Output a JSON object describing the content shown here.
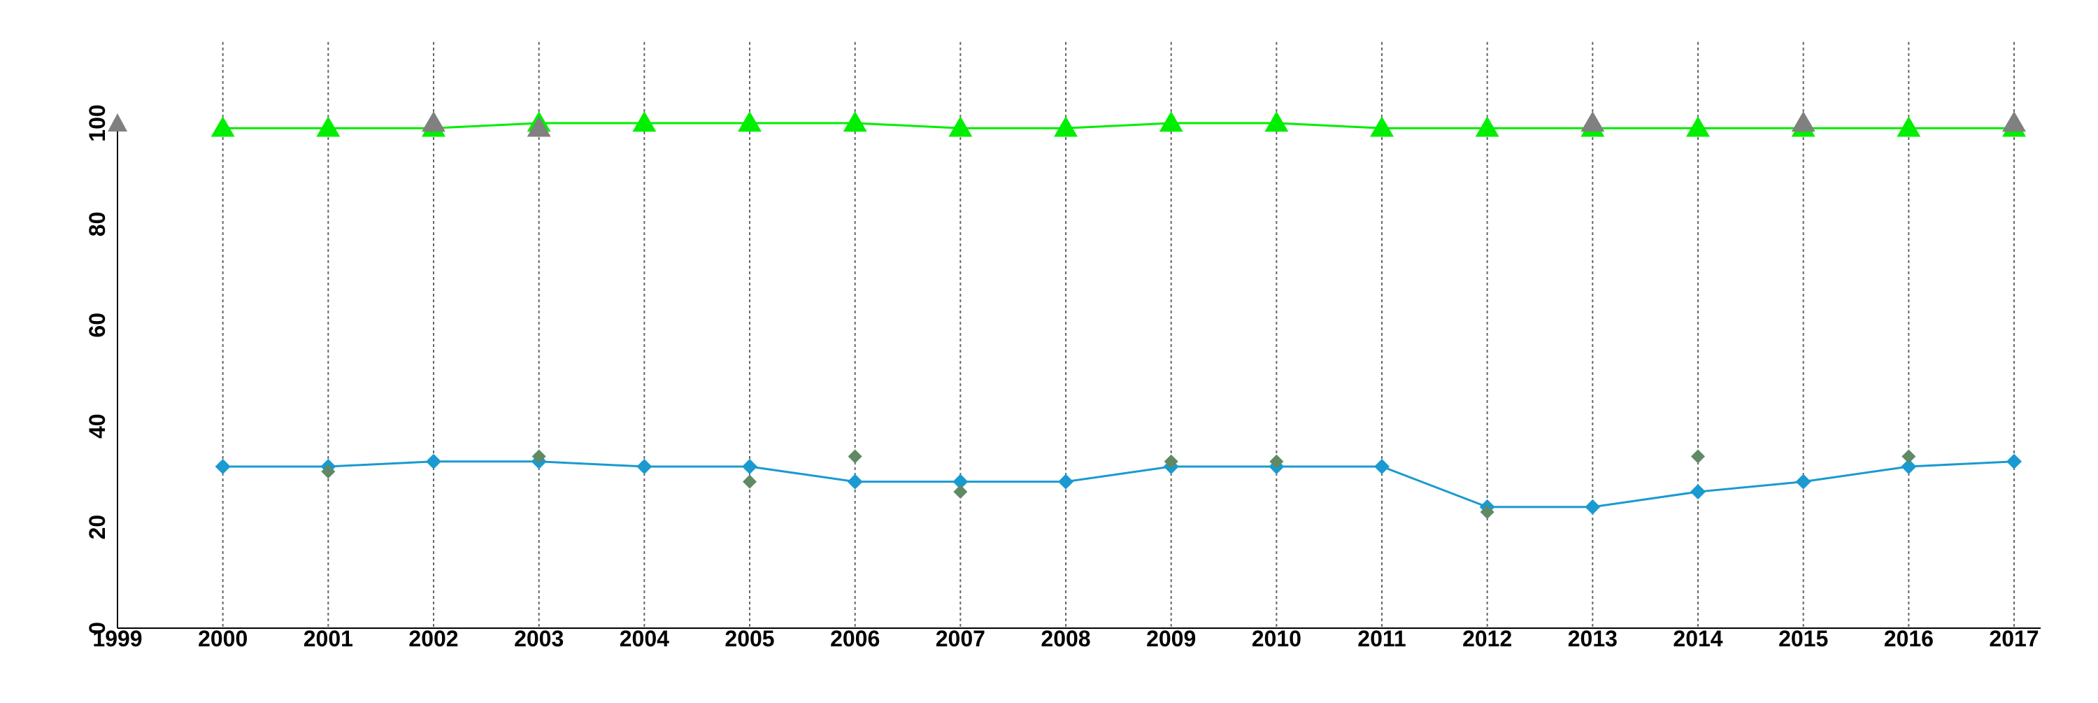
{
  "chart_data": {
    "type": "line",
    "title": "",
    "xlabel": "",
    "ylabel": "",
    "x": [
      2000,
      2001,
      2002,
      2003,
      2004,
      2005,
      2006,
      2007,
      2008,
      2009,
      2010,
      2011,
      2012,
      2013,
      2014,
      2015,
      2016,
      2017
    ],
    "xlim": [
      1999,
      2017
    ],
    "ylim": [
      0,
      100
    ],
    "xticks": [
      1999,
      2000,
      2001,
      2002,
      2003,
      2004,
      2005,
      2006,
      2007,
      2008,
      2009,
      2010,
      2011,
      2012,
      2013,
      2014,
      2015,
      2016,
      2017
    ],
    "yticks": [
      0,
      20,
      40,
      60,
      80,
      100
    ],
    "grid": "vertical dotted lines at each year",
    "legend": "none",
    "series": [
      {
        "marker": "triangle",
        "line": true,
        "color": "#00ee00",
        "values": [
          99,
          99,
          99,
          100,
          100,
          100,
          100,
          99,
          99,
          100,
          100,
          99,
          99,
          99,
          99,
          99,
          99,
          99
        ]
      },
      {
        "marker": "triangle",
        "line": false,
        "color": "#808080",
        "values": [
          null,
          null,
          100,
          99,
          null,
          null,
          null,
          null,
          null,
          null,
          null,
          null,
          null,
          100,
          null,
          100,
          null,
          100
        ]
      },
      {
        "marker": "diamond",
        "line": true,
        "color": "#1a9ad0",
        "values": [
          32,
          32,
          33,
          33,
          32,
          32,
          29,
          29,
          29,
          32,
          32,
          32,
          24,
          24,
          27,
          29,
          32,
          33
        ]
      },
      {
        "marker": "diamond",
        "line": false,
        "color": "#5f8a63",
        "values": [
          null,
          31,
          null,
          34,
          null,
          29,
          34,
          27,
          null,
          33,
          33,
          null,
          23,
          null,
          34,
          null,
          34,
          null
        ]
      }
    ]
  }
}
